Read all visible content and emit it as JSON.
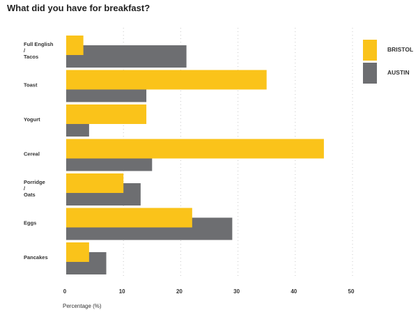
{
  "chart_data": {
    "type": "bar",
    "orientation": "horizontal",
    "title": "What did you have for breakfast?",
    "xlabel": "Percentage (%)",
    "ylabel": "",
    "xlim": [
      0,
      50
    ],
    "xticks": [
      0,
      10,
      20,
      30,
      40,
      50
    ],
    "grid": true,
    "legend_position": "top-right",
    "categories": [
      [
        "Full English",
        "/",
        "Tacos"
      ],
      [
        "Toast"
      ],
      [
        "Yogurt"
      ],
      [
        "Cereal"
      ],
      [
        "Porridge",
        "/",
        "Oats"
      ],
      [
        "Eggs"
      ],
      [
        "Pancakes"
      ]
    ],
    "series": [
      {
        "name": "BRISTOL",
        "color": "#FAC31A",
        "values": [
          3,
          35,
          14,
          45,
          10,
          22,
          4
        ]
      },
      {
        "name": "AUSTIN",
        "color": "#6D6E71",
        "values": [
          21,
          14,
          4,
          15,
          13,
          29,
          7
        ]
      }
    ]
  }
}
